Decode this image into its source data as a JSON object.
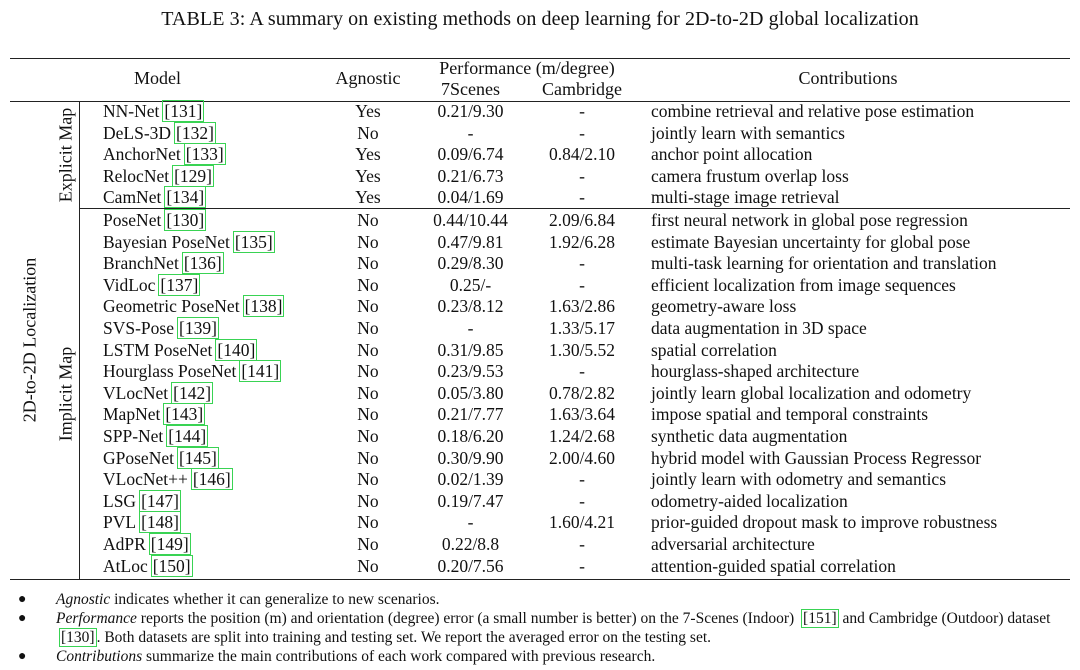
{
  "caption": "TABLE 3: A summary on existing methods on deep learning for 2D-to-2D global localization",
  "headers": {
    "model": "Model",
    "agnostic": "Agnostic",
    "performance": "Performance (m/degree)",
    "scenes": "7Scenes",
    "cambridge": "Cambridge",
    "contributions": "Contributions"
  },
  "groups": {
    "outer": "2D-to-2D Localization",
    "explicit": "Explicit Map",
    "implicit": "Implicit Map"
  },
  "rows": [
    {
      "group": "explicit",
      "model": "NN-Net",
      "ref": "[131]",
      "agnostic": "Yes",
      "scenes": "0.21/9.30",
      "cambridge": "-",
      "contrib": "combine retrieval and relative pose estimation"
    },
    {
      "group": "explicit",
      "model": "DeLS-3D",
      "ref": "[132]",
      "agnostic": "No",
      "scenes": "-",
      "cambridge": "-",
      "contrib": "jointly learn with semantics"
    },
    {
      "group": "explicit",
      "model": "AnchorNet",
      "ref": "[133]",
      "agnostic": "Yes",
      "scenes": "0.09/6.74",
      "cambridge": "0.84/2.10",
      "contrib": "anchor point allocation"
    },
    {
      "group": "explicit",
      "model": "RelocNet",
      "ref": "[129]",
      "agnostic": "Yes",
      "scenes": "0.21/6.73",
      "cambridge": "-",
      "contrib": "camera frustum overlap loss"
    },
    {
      "group": "explicit",
      "model": "CamNet",
      "ref": "[134]",
      "agnostic": "Yes",
      "scenes": "0.04/1.69",
      "cambridge": "-",
      "contrib": "multi-stage image retrieval"
    },
    {
      "group": "implicit",
      "model": "PoseNet",
      "ref": "[130]",
      "agnostic": "No",
      "scenes": "0.44/10.44",
      "cambridge": "2.09/6.84",
      "contrib": "first neural network in global pose regression"
    },
    {
      "group": "implicit",
      "model": "Bayesian PoseNet",
      "ref": "[135]",
      "agnostic": "No",
      "scenes": "0.47/9.81",
      "cambridge": "1.92/6.28",
      "contrib": "estimate Bayesian uncertainty for global pose"
    },
    {
      "group": "implicit",
      "model": "BranchNet",
      "ref": "[136]",
      "agnostic": "No",
      "scenes": "0.29/8.30",
      "cambridge": "-",
      "contrib": "multi-task learning for orientation and translation"
    },
    {
      "group": "implicit",
      "model": "VidLoc",
      "ref": "[137]",
      "agnostic": "No",
      "scenes": "0.25/-",
      "cambridge": "-",
      "contrib": "efficient localization from image sequences"
    },
    {
      "group": "implicit",
      "model": "Geometric PoseNet",
      "ref": "[138]",
      "agnostic": "No",
      "scenes": "0.23/8.12",
      "cambridge": "1.63/2.86",
      "contrib": "geometry-aware loss"
    },
    {
      "group": "implicit",
      "model": "SVS-Pose",
      "ref": "[139]",
      "agnostic": "No",
      "scenes": "-",
      "cambridge": "1.33/5.17",
      "contrib": "data augmentation in 3D space"
    },
    {
      "group": "implicit",
      "model": "LSTM PoseNet",
      "ref": "[140]",
      "agnostic": "No",
      "scenes": "0.31/9.85",
      "cambridge": "1.30/5.52",
      "contrib": "spatial correlation"
    },
    {
      "group": "implicit",
      "model": "Hourglass PoseNet",
      "ref": "[141]",
      "agnostic": "No",
      "scenes": "0.23/9.53",
      "cambridge": "-",
      "contrib": "hourglass-shaped architecture"
    },
    {
      "group": "implicit",
      "model": "VLocNet",
      "ref": "[142]",
      "agnostic": "No",
      "scenes": "0.05/3.80",
      "cambridge": "0.78/2.82",
      "contrib": "jointly learn global localization and odometry"
    },
    {
      "group": "implicit",
      "model": "MapNet",
      "ref": "[143]",
      "agnostic": "No",
      "scenes": "0.21/7.77",
      "cambridge": "1.63/3.64",
      "contrib": "impose spatial and temporal constraints"
    },
    {
      "group": "implicit",
      "model": "SPP-Net",
      "ref": "[144]",
      "agnostic": "No",
      "scenes": "0.18/6.20",
      "cambridge": "1.24/2.68",
      "contrib": "synthetic data augmentation"
    },
    {
      "group": "implicit",
      "model": "GPoseNet",
      "ref": "[145]",
      "agnostic": "No",
      "scenes": "0.30/9.90",
      "cambridge": "2.00/4.60",
      "contrib": "hybrid model with Gaussian Process Regressor"
    },
    {
      "group": "implicit",
      "model": "VLocNet++",
      "ref": "[146]",
      "agnostic": "No",
      "scenes": "0.02/1.39",
      "cambridge": "-",
      "contrib": "jointly learn with odometry and semantics"
    },
    {
      "group": "implicit",
      "model": "LSG",
      "ref": "[147]",
      "agnostic": "No",
      "scenes": "0.19/7.47",
      "cambridge": "-",
      "contrib": "odometry-aided localization"
    },
    {
      "group": "implicit",
      "model": "PVL",
      "ref": "[148]",
      "agnostic": "No",
      "scenes": "-",
      "cambridge": "1.60/4.21",
      "contrib": "prior-guided dropout mask to improve robustness"
    },
    {
      "group": "implicit",
      "model": "AdPR",
      "ref": "[149]",
      "agnostic": "No",
      "scenes": "0.22/8.8",
      "cambridge": "-",
      "contrib": "adversarial architecture"
    },
    {
      "group": "implicit",
      "model": "AtLoc",
      "ref": "[150]",
      "agnostic": "No",
      "scenes": "0.20/7.56",
      "cambridge": "-",
      "contrib": "attention-guided spatial correlation"
    }
  ],
  "notes": [
    {
      "term": "Agnostic",
      "text": " indicates whether it can generalize to new scenarios."
    },
    {
      "term": "Performance",
      "text": " reports the position (m) and orientation (degree) error (a small number is better) on the 7-Scenes (Indoor) ",
      "ref1": "[151]",
      "text2": " and Cambridge (Outdoor) dataset ",
      "ref2": "[130]",
      "text3": ". Both datasets are split into training and testing set. We report the averaged error on the testing set."
    },
    {
      "term": "Contributions",
      "text": " summarize the main contributions of each work compared with previous research."
    }
  ]
}
